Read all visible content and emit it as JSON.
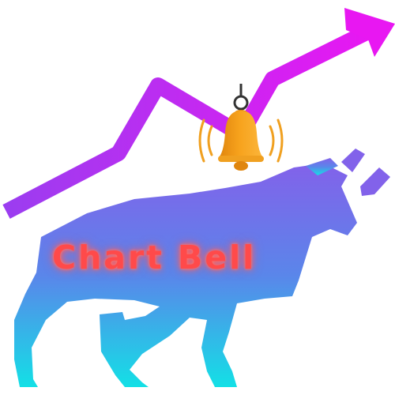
{
  "logo": {
    "brand_text": "Chart Bell",
    "colors": {
      "arrow_start": "#9b3df0",
      "arrow_end": "#e817f2",
      "bull_top": "#8262ea",
      "bull_bottom": "#13e0e6",
      "bell_body": "#f7a21c",
      "bell_shadow": "#e0860e",
      "bell_ring_lines": "#f0a020",
      "hanger": "#333333",
      "text": "#ff4a4a"
    },
    "icons": [
      "rising-arrow-icon",
      "bell-icon",
      "bull-icon"
    ]
  }
}
